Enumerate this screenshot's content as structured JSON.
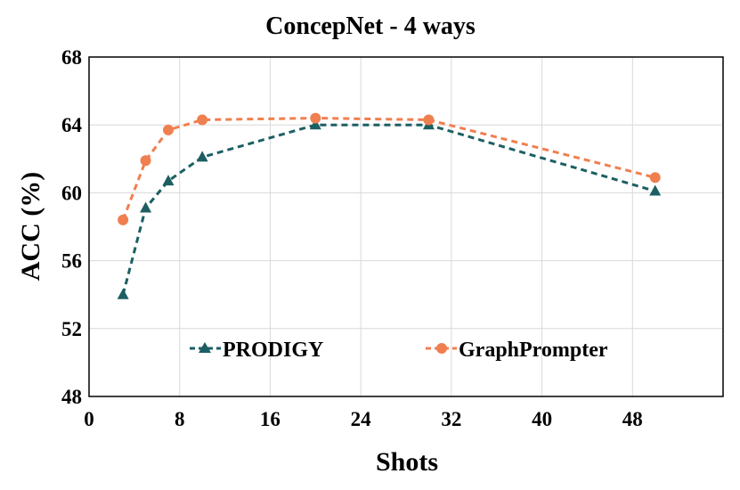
{
  "chart_data": {
    "type": "line",
    "title": "ConcepNet - 4 ways",
    "xlabel": "Shots",
    "ylabel": "ACC (%)",
    "xlim": [
      0,
      56
    ],
    "ylim": [
      48,
      68
    ],
    "xticks": [
      0,
      8,
      16,
      24,
      32,
      40,
      48
    ],
    "yticks": [
      48,
      52,
      56,
      60,
      64,
      68
    ],
    "grid": true,
    "legend_position": "bottom-center",
    "series": [
      {
        "name": "PRODIGY",
        "color": "#1c5f63",
        "marker": "triangle",
        "linestyle": "dashed",
        "x": [
          3,
          5,
          7,
          10,
          20,
          30,
          50
        ],
        "y": [
          54.0,
          59.1,
          60.7,
          62.1,
          64.0,
          64.0,
          60.1
        ]
      },
      {
        "name": "GraphPrompter",
        "color": "#f07f50",
        "marker": "circle",
        "linestyle": "dashed",
        "x": [
          3,
          5,
          7,
          10,
          20,
          30,
          50
        ],
        "y": [
          58.4,
          61.9,
          63.7,
          64.3,
          64.4,
          64.3,
          60.9
        ]
      }
    ]
  }
}
